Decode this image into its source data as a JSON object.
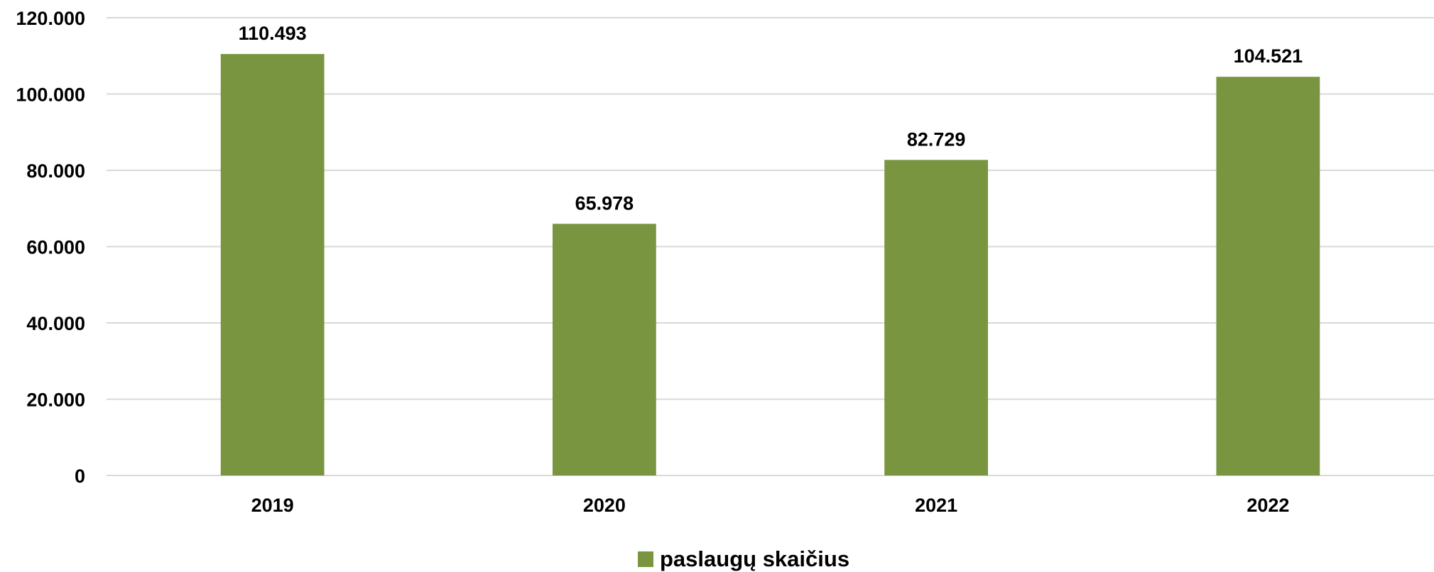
{
  "chart_data": {
    "type": "bar",
    "categories": [
      "2019",
      "2020",
      "2021",
      "2022"
    ],
    "series": [
      {
        "name": "paslaugų skaičius",
        "values": [
          110493,
          65978,
          82729,
          104521
        ],
        "value_labels": [
          "110.493",
          "65.978",
          "82.729",
          "104.521"
        ],
        "color": "#799540"
      }
    ],
    "y_ticks": [
      {
        "value": 0,
        "label": "0"
      },
      {
        "value": 20000,
        "label": "20.000"
      },
      {
        "value": 40000,
        "label": "40.000"
      },
      {
        "value": 60000,
        "label": "60.000"
      },
      {
        "value": 80000,
        "label": "80.000"
      },
      {
        "value": 100000,
        "label": "100.000"
      },
      {
        "value": 120000,
        "label": "120.000"
      }
    ],
    "ylim": [
      0,
      120000
    ],
    "grid": true,
    "legend_position": "bottom",
    "gridline_color": "#d9d9d9"
  }
}
